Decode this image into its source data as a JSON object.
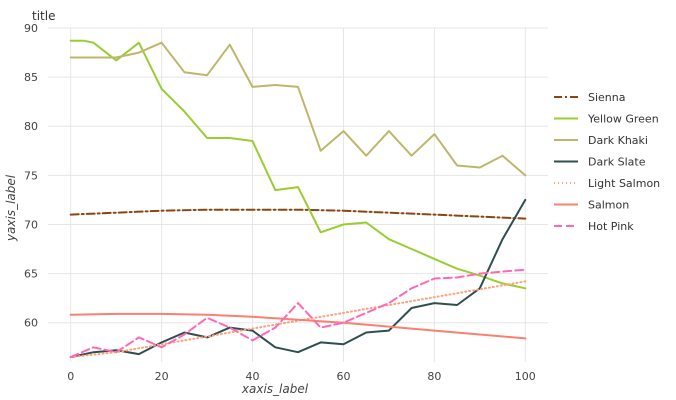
{
  "chart_data": {
    "type": "line",
    "title": "title",
    "xlabel": "xaxis_label",
    "ylabel": "yaxis_label",
    "xlim": [
      -5,
      105
    ],
    "ylim": [
      56,
      90
    ],
    "x_ticks": [
      0,
      20,
      40,
      60,
      80,
      100
    ],
    "y_ticks": [
      60,
      65,
      70,
      75,
      80,
      85,
      90
    ],
    "grid": true,
    "legend_position": "right",
    "series": [
      {
        "name": "Sienna",
        "color": "#8b4513",
        "dash": "8,3,2,3",
        "x": [
          0,
          10,
          20,
          30,
          40,
          50,
          60,
          70,
          80,
          90,
          100
        ],
        "y": [
          71.0,
          71.2,
          71.4,
          71.5,
          71.5,
          71.5,
          71.4,
          71.2,
          71.0,
          70.8,
          70.6
        ]
      },
      {
        "name": "Yellow Green",
        "color": "#9acd32",
        "dash": "",
        "x": [
          0,
          3,
          5,
          10,
          15,
          20,
          25,
          30,
          35,
          40,
          45,
          50,
          55,
          60,
          65,
          70,
          75,
          80,
          85,
          90,
          95,
          100
        ],
        "y": [
          88.7,
          88.7,
          88.5,
          86.7,
          88.5,
          83.8,
          81.5,
          78.8,
          78.8,
          78.5,
          73.5,
          73.8,
          69.2,
          70.0,
          70.2,
          68.5,
          67.5,
          66.5,
          65.5,
          64.8,
          64.0,
          63.5
        ]
      },
      {
        "name": "Dark Khaki",
        "color": "#bdb76b",
        "dash": "",
        "x": [
          0,
          5,
          10,
          15,
          20,
          25,
          30,
          35,
          40,
          45,
          50,
          55,
          60,
          65,
          70,
          75,
          80,
          85,
          90,
          95,
          100
        ],
        "y": [
          87.0,
          87.0,
          87.0,
          87.5,
          88.5,
          85.5,
          85.2,
          88.3,
          84.0,
          84.2,
          84.0,
          77.5,
          79.5,
          77.0,
          79.5,
          77.0,
          79.2,
          76.0,
          75.8,
          77.0,
          75.0
        ]
      },
      {
        "name": "Dark Slate",
        "color": "#2f4f4f",
        "dash": "",
        "x": [
          0,
          5,
          10,
          15,
          20,
          25,
          30,
          35,
          40,
          45,
          50,
          55,
          60,
          65,
          70,
          75,
          80,
          85,
          90,
          95,
          100
        ],
        "y": [
          56.5,
          57.0,
          57.2,
          56.8,
          58.0,
          59.0,
          58.5,
          59.5,
          59.2,
          57.5,
          57.0,
          58.0,
          57.8,
          59.0,
          59.2,
          61.5,
          62.0,
          61.8,
          63.5,
          68.5,
          72.5
        ]
      },
      {
        "name": "Light Salmon",
        "color": "#ffa07a",
        "dash": "1,3",
        "x": [
          0,
          10,
          20,
          30,
          40,
          50,
          60,
          70,
          80,
          90,
          100
        ],
        "y": [
          56.5,
          57.0,
          57.8,
          58.6,
          59.4,
          60.2,
          61.0,
          61.8,
          62.6,
          63.4,
          64.2
        ]
      },
      {
        "name": "Salmon",
        "color": "#fa8072",
        "dash": "",
        "x": [
          0,
          10,
          20,
          30,
          40,
          50,
          60,
          70,
          80,
          90,
          100
        ],
        "y": [
          60.8,
          60.9,
          60.9,
          60.8,
          60.6,
          60.3,
          60.0,
          59.6,
          59.2,
          58.8,
          58.4
        ]
      },
      {
        "name": "Hot Pink",
        "color": "#ff69b4",
        "dash": "8,4",
        "x": [
          0,
          5,
          10,
          15,
          20,
          25,
          30,
          35,
          40,
          45,
          50,
          55,
          60,
          65,
          70,
          75,
          80,
          85,
          90,
          95,
          100
        ],
        "y": [
          56.5,
          57.5,
          57.0,
          58.5,
          57.5,
          58.8,
          60.5,
          59.5,
          58.2,
          59.5,
          62.0,
          59.5,
          60.0,
          61.0,
          62.0,
          63.5,
          64.5,
          64.6,
          65.0,
          65.2,
          65.4
        ]
      }
    ]
  }
}
